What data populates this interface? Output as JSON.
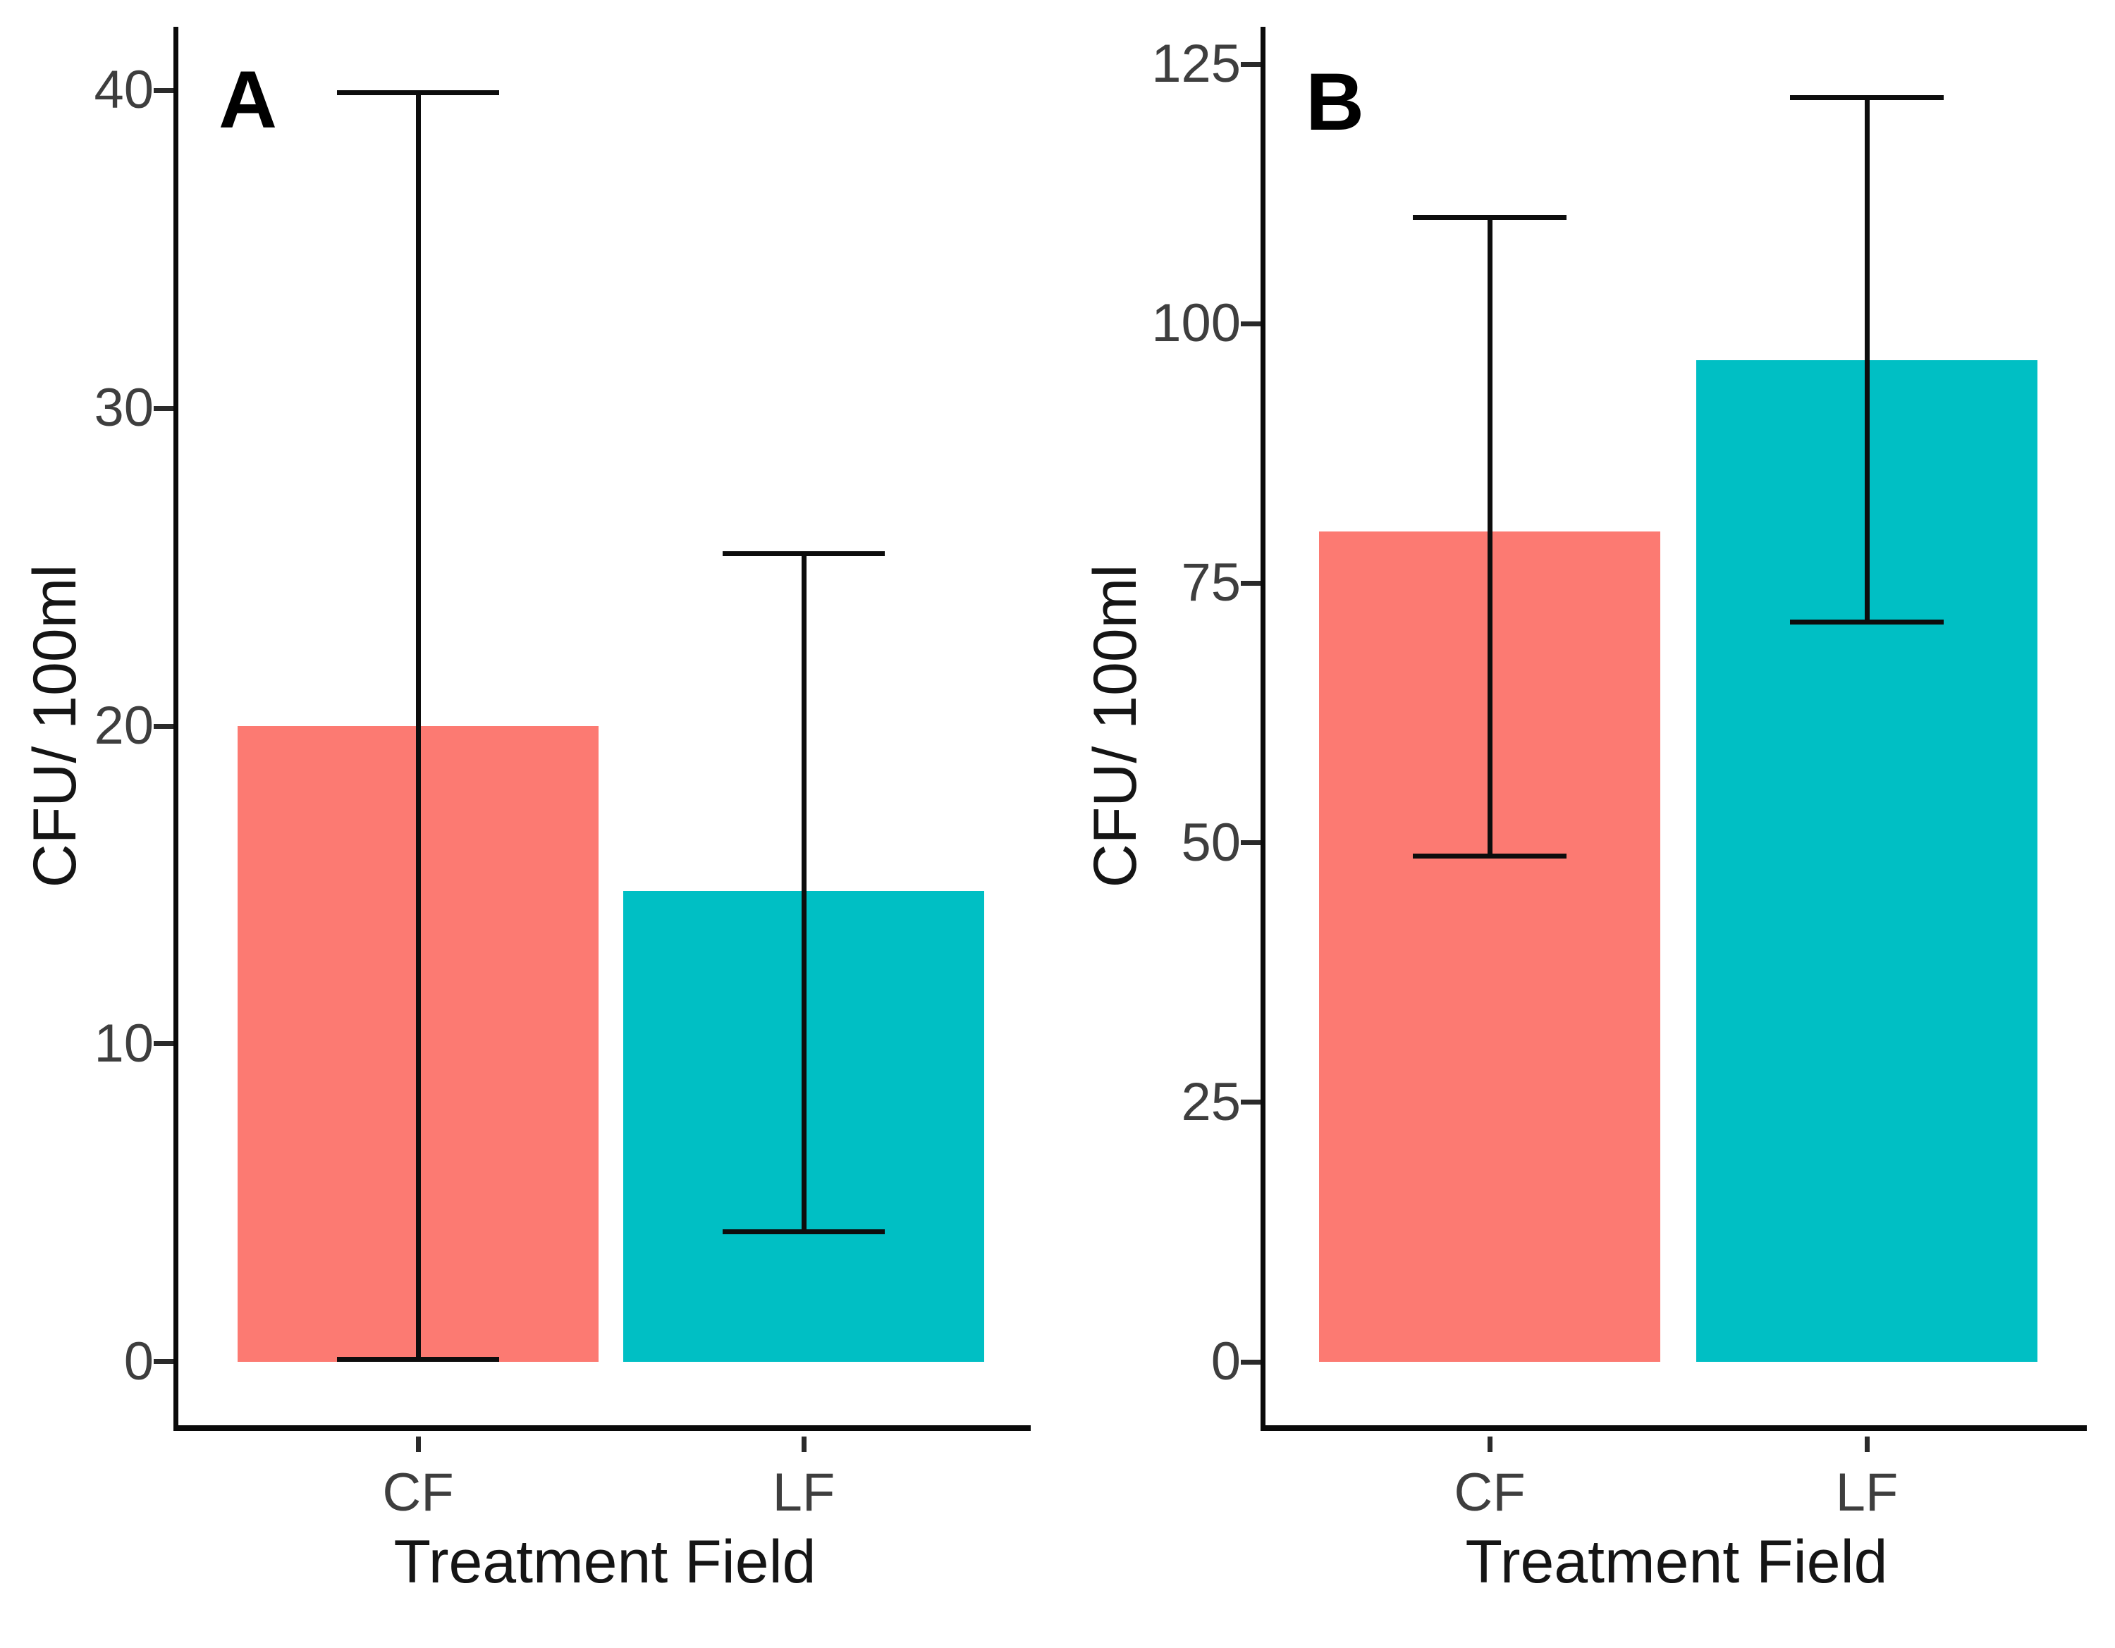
{
  "figure": {
    "description": "Two-panel bar chart comparing colony counts between treatment fields",
    "panel_letters": [
      "A",
      "B"
    ]
  },
  "chart_data": [
    {
      "panel_label": "A",
      "type": "bar",
      "title": "",
      "xlabel": "Treatment Field",
      "ylabel": "CFU/ 100ml",
      "categories": [
        "CF",
        "LF"
      ],
      "values": [
        20,
        14.8
      ],
      "error_low": [
        0,
        4
      ],
      "error_high": [
        40,
        25.5
      ],
      "yticks": [
        0,
        10,
        20,
        30,
        40
      ],
      "ylim": [
        -2,
        42
      ],
      "bar_colors": [
        "#FC7A72",
        "#00BFC4"
      ],
      "grid": false,
      "legend_position": "none"
    },
    {
      "panel_label": "B",
      "type": "bar",
      "title": "",
      "xlabel": "Treatment Field",
      "ylabel": "CFU/ 100ml",
      "categories": [
        "CF",
        "LF"
      ],
      "values": [
        80,
        96.5
      ],
      "error_low": [
        48.5,
        71
      ],
      "error_high": [
        110.5,
        122
      ],
      "yticks": [
        0,
        25,
        50,
        75,
        100,
        125
      ],
      "ylim": [
        -6.1,
        128.6
      ],
      "bar_colors": [
        "#FC7A72",
        "#00BFC4"
      ],
      "grid": false,
      "legend_position": "none"
    }
  ]
}
